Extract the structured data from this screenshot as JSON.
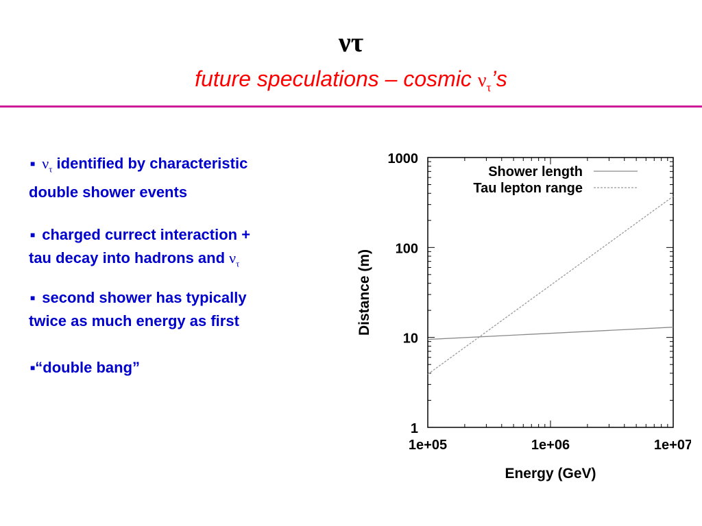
{
  "slide": {
    "title_main": "ν",
    "title_main_sub": "τ",
    "subtitle_prefix": "future speculations – cosmic ",
    "subtitle_greek": "ν",
    "subtitle_sub": "τ",
    "subtitle_suffix": "’s",
    "rule_color": "#cc1a99",
    "title_color": "#ff0000",
    "text_color": "#0000cc"
  },
  "bullets": [
    {
      "greek": "ν",
      "sub": "τ",
      "line1": " identified by characteristic",
      "line2": "double shower events"
    },
    {
      "line1": "charged currect interaction +",
      "line2": "tau decay into hadrons and ",
      "greek": "ν",
      "sub": "τ"
    },
    {
      "line1": "second shower has typically",
      "line2": "twice as much energy as first"
    },
    {
      "line1": "“double bang”"
    }
  ],
  "chart_data": {
    "type": "line",
    "xlabel": "Energy (GeV)",
    "ylabel": "Distance (m)",
    "x_scale": "log",
    "y_scale": "log",
    "xlim": [
      100000,
      10000000
    ],
    "ylim": [
      1,
      1000
    ],
    "x_ticks": [
      "1e+05",
      "1e+06",
      "1e+07"
    ],
    "y_ticks": [
      "1",
      "10",
      "100",
      "1000"
    ],
    "grid": false,
    "legend_position": "top-right",
    "series": [
      {
        "name": "Shower length",
        "style": "solid",
        "x": [
          100000,
          10000000
        ],
        "y": [
          9.5,
          13
        ]
      },
      {
        "name": "Tau lepton range",
        "style": "dashed",
        "x": [
          100000,
          10000000
        ],
        "y": [
          3.9,
          370
        ]
      }
    ]
  }
}
